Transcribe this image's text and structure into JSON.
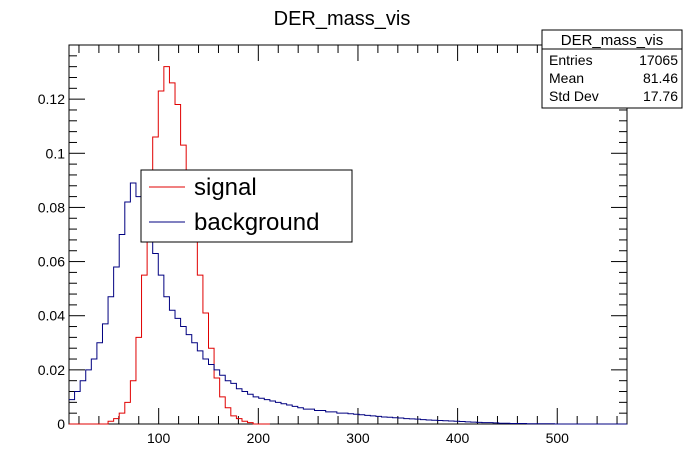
{
  "chart_data": {
    "type": "histogram",
    "title": "DER_mass_vis",
    "xlabel": "",
    "ylabel": "",
    "xlim": [
      10,
      570
    ],
    "ylim": [
      0,
      0.14
    ],
    "x_ticks": [
      100,
      200,
      300,
      400,
      500
    ],
    "y_ticks": [
      0,
      0.02,
      0.04,
      0.06,
      0.08,
      0.1,
      0.12
    ],
    "y_tick_labels": [
      "0",
      "0.02",
      "0.04",
      "0.06",
      "0.08",
      "0.1",
      "0.12"
    ],
    "grid": false,
    "bin_width": 5.6,
    "legend": {
      "position": "upper-left-center"
    },
    "stats_box": {
      "title": "DER_mass_vis",
      "rows": [
        {
          "label": "Entries",
          "value": "17065"
        },
        {
          "label": "Mean",
          "value": "81.46"
        },
        {
          "label": "Std Dev",
          "value": "17.76"
        }
      ]
    },
    "series": [
      {
        "name": "signal",
        "color": "#e00000",
        "values": [
          0,
          0,
          0,
          0,
          0,
          0,
          0,
          0.001,
          0.002,
          0.004,
          0.008,
          0.016,
          0.032,
          0.055,
          0.082,
          0.106,
          0.123,
          0.132,
          0.126,
          0.118,
          0.103,
          0.086,
          0.072,
          0.055,
          0.041,
          0.028,
          0.017,
          0.01,
          0.006,
          0.003,
          0.002,
          0.001,
          0.0005,
          0,
          0,
          0
        ]
      },
      {
        "name": "background",
        "color": "#000080",
        "values": [
          0.009,
          0.012,
          0.016,
          0.02,
          0.024,
          0.03,
          0.037,
          0.047,
          0.058,
          0.07,
          0.082,
          0.089,
          0.084,
          0.078,
          0.071,
          0.063,
          0.055,
          0.047,
          0.042,
          0.039,
          0.036,
          0.033,
          0.03,
          0.027,
          0.024,
          0.022,
          0.02,
          0.018,
          0.016,
          0.015,
          0.013,
          0.012,
          0.011,
          0.01,
          0.0095,
          0.009,
          0.0085,
          0.008,
          0.0075,
          0.007,
          0.0065,
          0.006,
          0.0055,
          0.0055,
          0.005,
          0.005,
          0.0045,
          0.0045,
          0.004,
          0.004,
          0.0038,
          0.0036,
          0.0034,
          0.0032,
          0.003,
          0.0028,
          0.0026,
          0.0025,
          0.0023,
          0.0022,
          0.002,
          0.0019,
          0.0018,
          0.0016,
          0.0015,
          0.0014,
          0.0013,
          0.0012,
          0.0011,
          0.001,
          0.0009,
          0.0008,
          0.0007,
          0.0006,
          0.0005,
          0.0005,
          0.0004,
          0.0003,
          0.0003,
          0.0002,
          0.0002,
          0.0002,
          0.0001,
          0.0001,
          0.0001,
          0.0001,
          0.0001,
          0,
          0,
          0,
          0,
          0,
          0,
          0,
          0,
          0,
          0,
          0,
          0,
          0
        ]
      }
    ]
  }
}
